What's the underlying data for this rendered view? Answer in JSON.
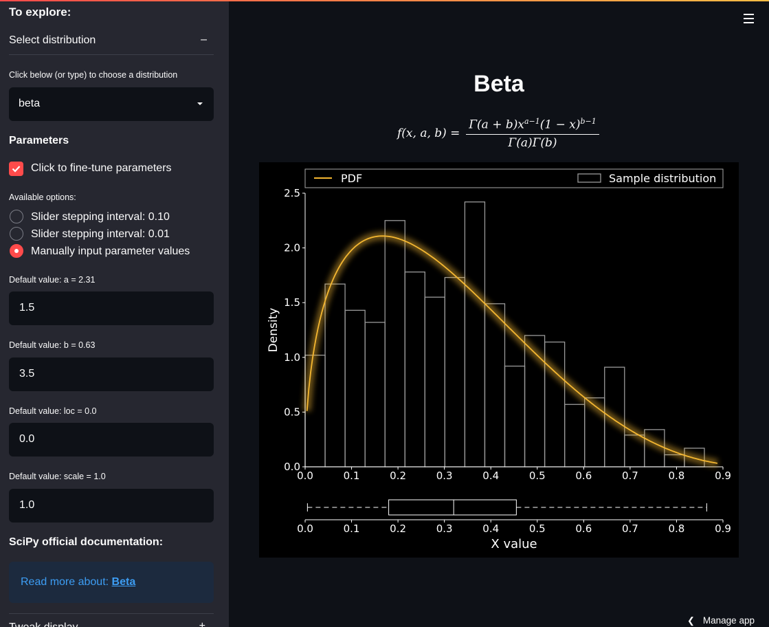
{
  "sidebar": {
    "heading": "To explore:",
    "expander_label": "Select distribution",
    "expander_symbol": "–",
    "choose_label": "Click below (or type) to choose a distribution",
    "selected_distribution": "beta",
    "parameters_heading": "Parameters",
    "finetune_label": "Click to fine-tune parameters",
    "finetune_checked": true,
    "options_label": "Available options:",
    "radio_options": [
      {
        "label": "Slider stepping interval: 0.10",
        "selected": false
      },
      {
        "label": "Slider stepping interval: 0.01",
        "selected": false
      },
      {
        "label": "Manually input parameter values",
        "selected": true
      }
    ],
    "params": [
      {
        "label": "Default value: a = 2.31",
        "value": "1.5"
      },
      {
        "label": "Default value: b = 0.63",
        "value": "3.5"
      },
      {
        "label": "Default value: loc = 0.0",
        "value": "0.0"
      },
      {
        "label": "Default value: scale = 1.0",
        "value": "1.0"
      }
    ],
    "docs_heading": "SciPy official documentation:",
    "docs_prefix": "Read more about: ",
    "docs_link": "Beta",
    "tweak_label": "Tweak display",
    "tweak_symbol": "+"
  },
  "main": {
    "title": "Beta",
    "formula_lhs": "f(x, a, b) =",
    "formula_num_html": "Γ(a + b)x<sup>a−1</sup>(1 − x)<sup>b−1</sup>",
    "formula_den": "Γ(a)Γ(b)",
    "manage_label": "Manage app"
  },
  "colors": {
    "accent": "#ff4b4b",
    "pdf_line": "#f5b731",
    "histogram_edge": "#9a9a9a",
    "link": "#3d9df3"
  },
  "chart_data": {
    "type": "bar",
    "xlabel": "X value",
    "ylabel": "Density",
    "xlim": [
      0.0,
      0.9
    ],
    "ylim": [
      0.0,
      2.5
    ],
    "xticks": [
      "0.0",
      "0.1",
      "0.2",
      "0.3",
      "0.4",
      "0.5",
      "0.6",
      "0.7",
      "0.8",
      "0.9"
    ],
    "yticks": [
      "0.0",
      "0.5",
      "1.0",
      "1.5",
      "2.0",
      "2.5"
    ],
    "legend": [
      "PDF",
      "Sample distribution"
    ],
    "legend_placement": "top",
    "histogram": {
      "name": "Sample distribution",
      "bin_start": 0.0,
      "bin_width": 0.043,
      "values": [
        1.02,
        1.67,
        1.43,
        1.32,
        2.25,
        1.78,
        1.55,
        1.73,
        2.42,
        1.49,
        0.92,
        1.2,
        1.14,
        0.57,
        0.63,
        0.91,
        0.29,
        0.34,
        0.11,
        0.17
      ]
    },
    "pdf": {
      "name": "PDF",
      "a": 1.5,
      "b": 3.5,
      "x": [
        0.005,
        0.02,
        0.05,
        0.1,
        0.15,
        0.2,
        0.25,
        0.3,
        0.35,
        0.4,
        0.45,
        0.5,
        0.55,
        0.6,
        0.65,
        0.7,
        0.75,
        0.8,
        0.85,
        0.9
      ],
      "y": [
        0.46,
        0.93,
        1.51,
        1.99,
        2.11,
        2.06,
        1.91,
        1.72,
        1.5,
        1.28,
        1.06,
        0.85,
        0.66,
        0.49,
        0.35,
        0.23,
        0.14,
        0.07,
        0.03,
        0.01
      ]
    },
    "boxplot": {
      "whisker_low": 0.005,
      "q1": 0.18,
      "median": 0.32,
      "q3": 0.455,
      "whisker_high": 0.865
    }
  }
}
